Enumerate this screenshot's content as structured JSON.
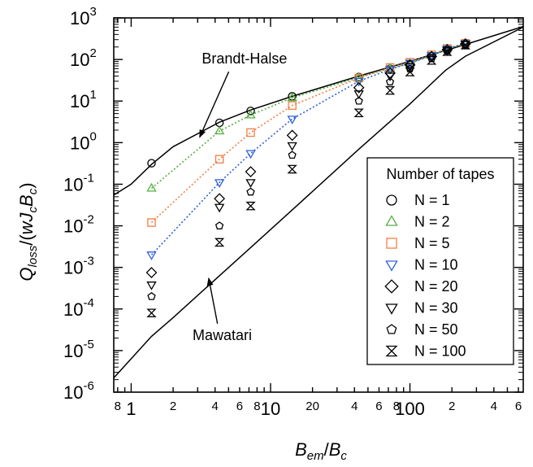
{
  "chart_data": {
    "type": "scatter",
    "x_scale": "log",
    "y_scale": "log",
    "xlim": [
      0.75,
      650
    ],
    "ylim": [
      1e-06,
      1000
    ],
    "xlabel": {
      "base": "B",
      "sub": "em",
      "sep": "/",
      "base2": "B",
      "sub2": "c"
    },
    "ylabel": {
      "base": "Q",
      "sub": "loss",
      "mid": "/(",
      "w": "w",
      "J": "J",
      "sub_c": "c",
      "B": "B",
      "sub_c2": "c",
      "end": ")"
    },
    "x_major_ticks": [
      {
        "value": 1,
        "label": "1"
      },
      {
        "value": 10,
        "label": "10"
      },
      {
        "value": 100,
        "label": "100"
      }
    ],
    "x_minor_ticks": [
      {
        "value": 0.8,
        "label": "8"
      },
      {
        "value": 2,
        "label": "2"
      },
      {
        "value": 4,
        "label": "4"
      },
      {
        "value": 6,
        "label": "6"
      },
      {
        "value": 8,
        "label": "8"
      },
      {
        "value": 20,
        "label": "20"
      },
      {
        "value": 40,
        "label": "4"
      },
      {
        "value": 60,
        "label": "6"
      },
      {
        "value": 80,
        "label": "8"
      },
      {
        "value": 200,
        "label": "2"
      },
      {
        "value": 400,
        "label": "4"
      },
      {
        "value": 600,
        "label": "6"
      }
    ],
    "y_ticks": [
      {
        "exp": -6,
        "base": "10",
        "sup": "-6"
      },
      {
        "exp": -5,
        "base": "10",
        "sup": "-5"
      },
      {
        "exp": -4,
        "base": "10",
        "sup": "-4"
      },
      {
        "exp": -3,
        "base": "10",
        "sup": "-3"
      },
      {
        "exp": -2,
        "base": "10",
        "sup": "-2"
      },
      {
        "exp": -1,
        "base": "10",
        "sup": "-1"
      },
      {
        "exp": 0,
        "base": "10",
        "sup": "0"
      },
      {
        "exp": 1,
        "base": "10",
        "sup": "1"
      },
      {
        "exp": 2,
        "base": "10",
        "sup": "2"
      },
      {
        "exp": 3,
        "base": "10",
        "sup": "3"
      }
    ],
    "x_points": [
      1.4,
      4.3,
      7.2,
      14.3,
      43,
      72,
      100,
      143,
      185,
      250
    ],
    "series": [
      {
        "name": "N = 1",
        "marker": "circle",
        "color": "#000000",
        "values": [
          0.32,
          3.0,
          5.8,
          13,
          38,
          60,
          78,
          118,
          165,
          225
        ],
        "fit": false
      },
      {
        "name": "N = 2",
        "marker": "triangle-up",
        "color": "#55b040",
        "values": [
          0.08,
          1.9,
          4.6,
          12,
          37,
          62,
          80,
          125,
          180,
          240
        ],
        "fit": true
      },
      {
        "name": "N = 5",
        "marker": "square",
        "color": "#f07f45",
        "values": [
          0.012,
          0.4,
          1.75,
          7.8,
          36,
          64,
          86,
          130,
          185,
          245
        ],
        "fit": true
      },
      {
        "name": "N = 10",
        "marker": "triangle-down",
        "color": "#3060d8",
        "values": [
          0.002,
          0.11,
          0.55,
          3.7,
          30,
          58,
          82,
          125,
          180,
          242
        ],
        "fit": true
      },
      {
        "name": "N = 20",
        "marker": "diamond",
        "color": "#000000",
        "values": [
          0.00075,
          0.045,
          0.2,
          1.5,
          21,
          47,
          74,
          118,
          172,
          238
        ],
        "fit": false
      },
      {
        "name": "N = 30",
        "marker": "triangle-down",
        "color": "#000000",
        "values": [
          0.00038,
          0.028,
          0.11,
          0.85,
          15,
          40,
          68,
          112,
          168,
          232
        ],
        "fit": false
      },
      {
        "name": "N = 50",
        "marker": "pentagon",
        "color": "#000000",
        "values": [
          0.0002,
          0.01,
          0.065,
          0.5,
          10,
          29,
          60,
          105,
          162,
          228
        ],
        "fit": false
      },
      {
        "name": "N = 100",
        "marker": "hourglass",
        "color": "#000000",
        "values": [
          8e-05,
          0.004,
          0.03,
          0.23,
          5.2,
          18,
          50,
          95,
          155,
          222
        ],
        "fit": false
      }
    ],
    "curves": [
      {
        "name": "Brandt-Halse",
        "color": "#000000",
        "points": [
          [
            0.75,
            0.055
          ],
          [
            1.0,
            0.1
          ],
          [
            1.4,
            0.3
          ],
          [
            2,
            0.8
          ],
          [
            4.3,
            3.1
          ],
          [
            7.2,
            6.1
          ],
          [
            14.3,
            13
          ],
          [
            43,
            40
          ],
          [
            100,
            90
          ],
          [
            250,
            230
          ],
          [
            650,
            620
          ]
        ]
      },
      {
        "name": "Mawatari",
        "color": "#000000",
        "points": [
          [
            0.75,
            2.2e-06
          ],
          [
            1.4,
            2.2e-05
          ],
          [
            2,
            6.2e-05
          ],
          [
            4.3,
            0.00063
          ],
          [
            7.2,
            0.003
          ],
          [
            14.3,
            0.024
          ],
          [
            43,
            0.7
          ],
          [
            100,
            8.5
          ],
          [
            180,
            55
          ],
          [
            250,
            120
          ],
          [
            650,
            600
          ]
        ]
      }
    ],
    "annotations": [
      {
        "text": "Brandt-Halse",
        "x": 6.5,
        "y": 80,
        "arrow_to": [
          3.1,
          1.35
        ]
      },
      {
        "text": "Mawatari",
        "x": 4.5,
        "y": 1.8e-05,
        "arrow_to": [
          3.6,
          0.00055
        ]
      }
    ],
    "legend": {
      "title": "Number of tapes",
      "placement": "lower-right"
    }
  }
}
